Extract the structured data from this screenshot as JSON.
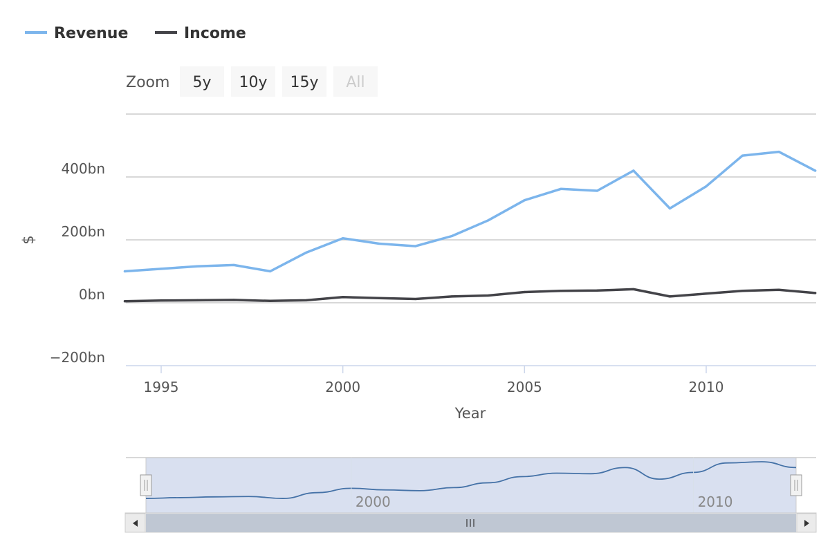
{
  "legend": [
    {
      "name": "Revenue",
      "color": "#7cb5ec"
    },
    {
      "name": "Income",
      "color": "#434348"
    }
  ],
  "range_selector": {
    "label": "Zoom",
    "buttons": [
      {
        "label": "5y",
        "state": "normal"
      },
      {
        "label": "10y",
        "state": "normal"
      },
      {
        "label": "15y",
        "state": "normal"
      },
      {
        "label": "All",
        "state": "disabled"
      }
    ]
  },
  "navigator": {
    "tick_labels": [
      "2000",
      "2010"
    ],
    "handle_icon": "grip-icon",
    "scrollbar_grip_icon": "grip-icon",
    "left_arrow_icon": "arrow-left-icon",
    "right_arrow_icon": "arrow-right-icon"
  },
  "chart_data": {
    "type": "line",
    "title": "",
    "xlabel": "Year",
    "ylabel": "$",
    "x": [
      1994,
      1995,
      1996,
      1997,
      1998,
      1999,
      2000,
      2001,
      2002,
      2003,
      2004,
      2005,
      2006,
      2007,
      2008,
      2009,
      2010,
      2011,
      2012,
      2013
    ],
    "series": [
      {
        "name": "Revenue",
        "color": "#7cb5ec",
        "values": [
          100,
          108,
          116,
          120,
          100,
          160,
          205,
          188,
          180,
          212,
          262,
          326,
          362,
          356,
          420,
          300,
          370,
          468,
          480,
          420
        ]
      },
      {
        "name": "Income",
        "color": "#434348",
        "values": [
          5,
          7,
          8,
          9,
          6,
          8,
          18,
          15,
          12,
          20,
          23,
          34,
          38,
          39,
          43,
          20,
          29,
          38,
          41,
          31
        ]
      }
    ],
    "xlim": [
      1994,
      2013
    ],
    "ylim": [
      -200,
      600
    ],
    "x_ticks": [
      1995,
      2000,
      2005,
      2010
    ],
    "x_tick_labels": [
      "1995",
      "2000",
      "2005",
      "2010"
    ],
    "y_ticks": [
      -200,
      0,
      200,
      400
    ],
    "y_tick_labels": [
      "−200bn",
      "0bn",
      "200bn",
      "400bn"
    ],
    "grid": true,
    "legend_position": "top-left"
  }
}
